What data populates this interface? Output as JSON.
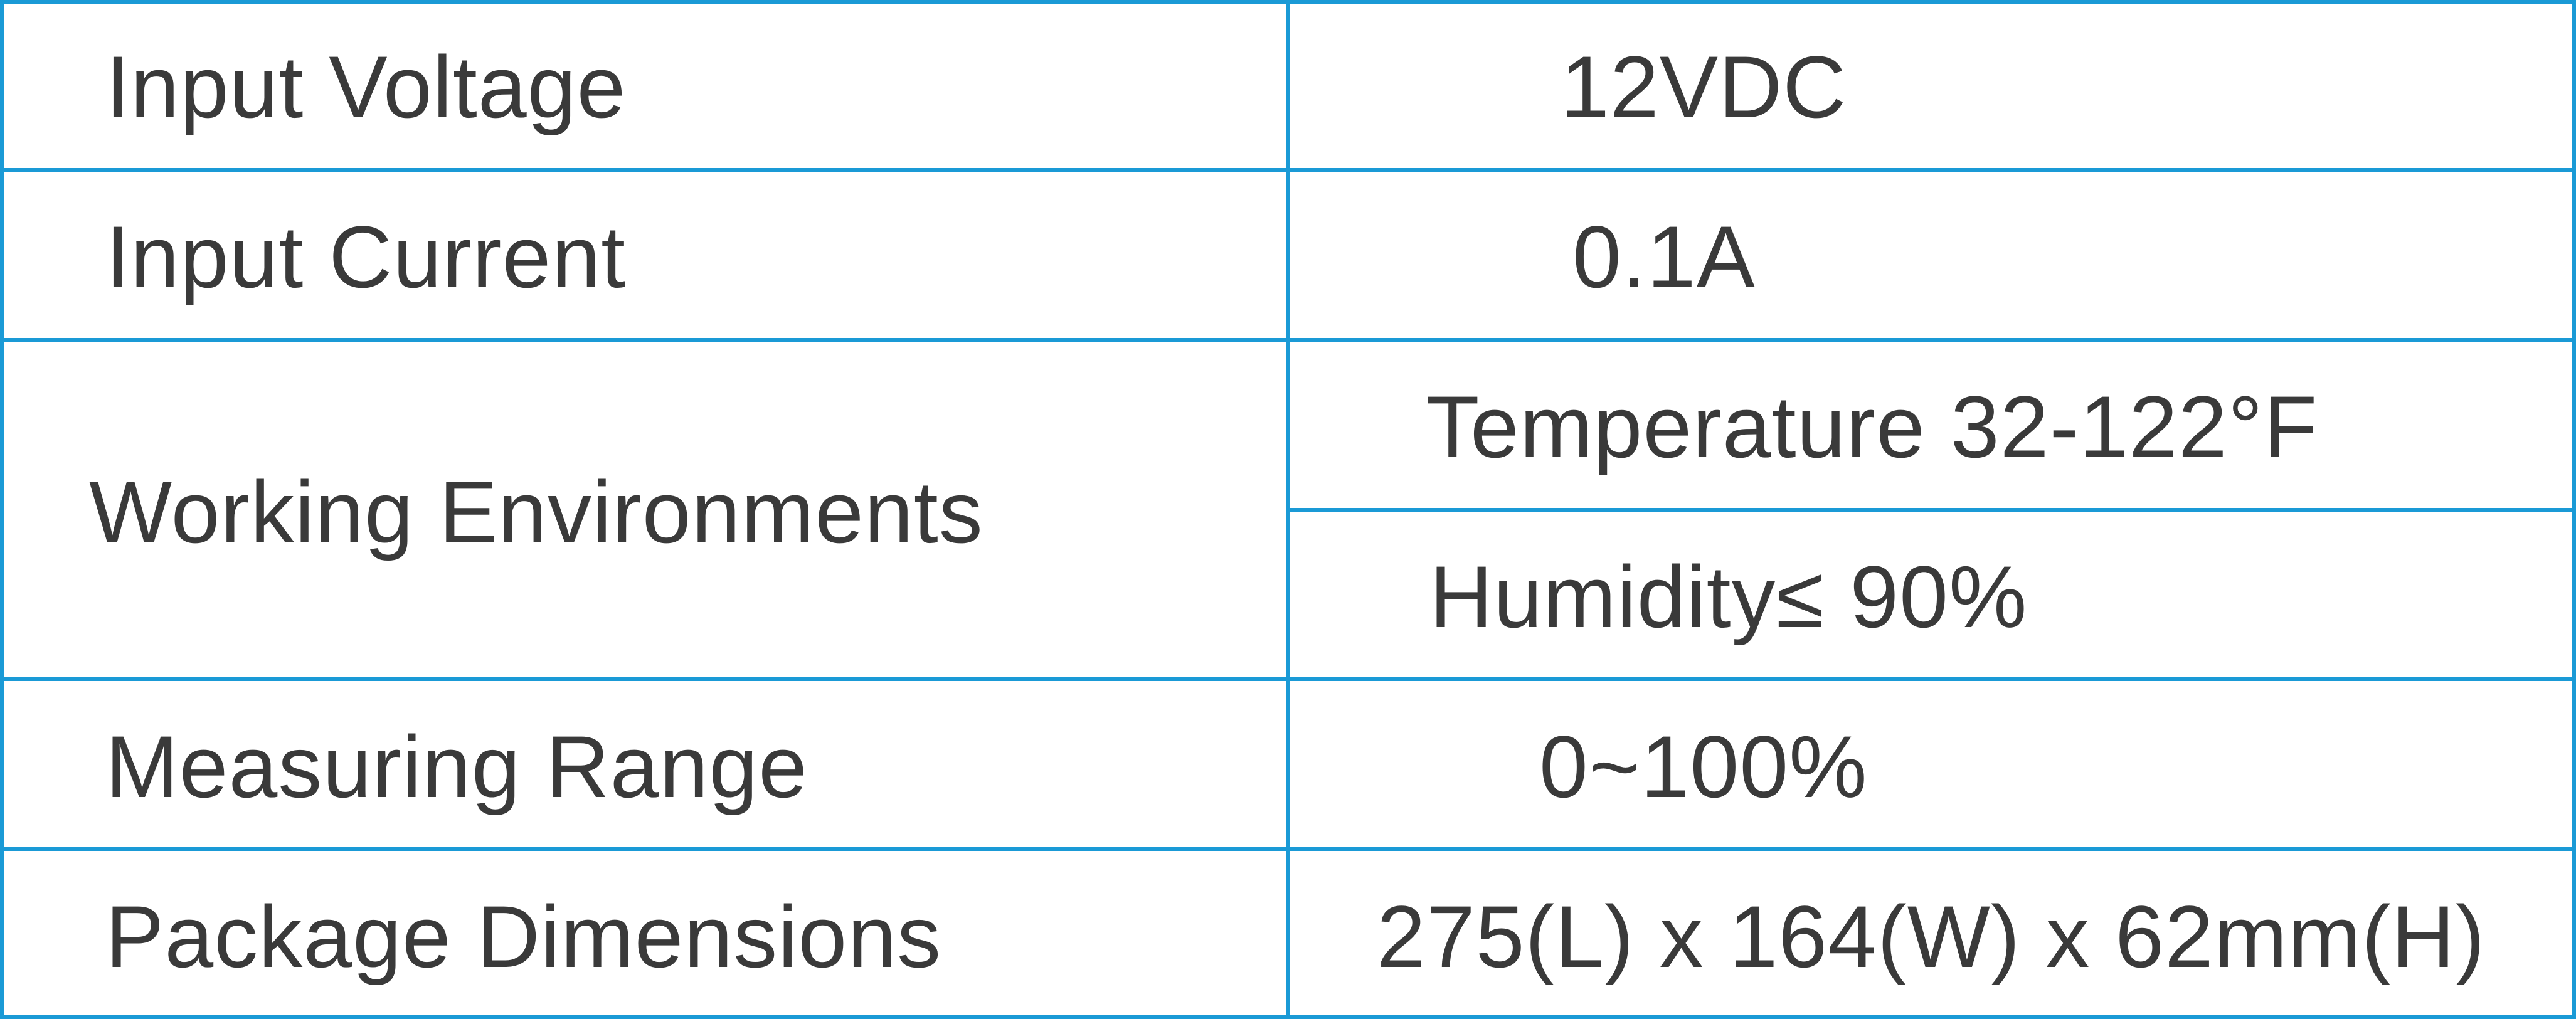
{
  "table": {
    "rows": [
      {
        "label": "Input Voltage",
        "values": [
          "12VDC"
        ]
      },
      {
        "label": "Input Current",
        "values": [
          "0.1A"
        ]
      },
      {
        "label": "Working Environments",
        "values": [
          "Temperature 32-122°F",
          "Humidity≤ 90%"
        ]
      },
      {
        "label": "Measuring Range",
        "values": [
          "0~100%"
        ]
      },
      {
        "label": "Package Dimensions",
        "values": [
          "275(L) x 164(W) x 62mm(H)"
        ]
      }
    ]
  }
}
